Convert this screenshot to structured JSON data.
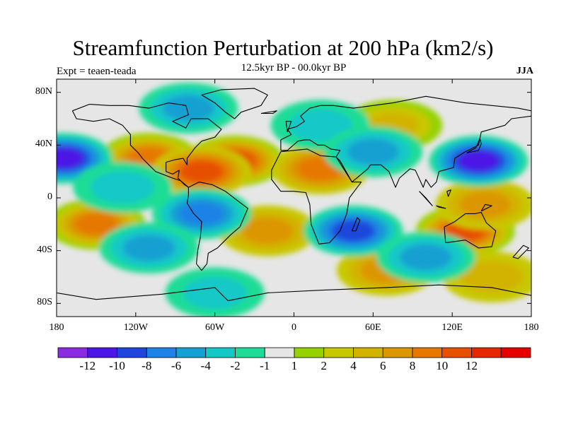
{
  "header": {
    "title": "Streamfunction Perturbation at 200 hPa (km2/s)",
    "subtitle": "12.5kyr BP - 00.0kyr BP",
    "left_label": "Expt = teaen-teada",
    "right_label": "JJA"
  },
  "map": {
    "projection": "cylindrical-equidistant",
    "lon_range": [
      -180,
      180
    ],
    "lat_range": [
      -90,
      90
    ],
    "lat_ticks": [
      {
        "value": 80,
        "label": "80N"
      },
      {
        "value": 40,
        "label": "40N"
      },
      {
        "value": 0,
        "label": "0"
      },
      {
        "value": -40,
        "label": "40S"
      },
      {
        "value": -80,
        "label": "80S"
      }
    ],
    "lon_ticks": [
      {
        "value": -180,
        "label": "180"
      },
      {
        "value": -120,
        "label": "120W"
      },
      {
        "value": -60,
        "label": "60W"
      },
      {
        "value": 0,
        "label": "0"
      },
      {
        "value": 60,
        "label": "60E"
      },
      {
        "value": 120,
        "label": "120E"
      },
      {
        "value": 180,
        "label": "180"
      }
    ],
    "colorbar": {
      "colors": [
        "#8a2be2",
        "#4b16e6",
        "#1e46dc",
        "#1e82e6",
        "#14a0d2",
        "#14c8c8",
        "#1edc96",
        "#e6e6e6",
        "#96d200",
        "#c8c800",
        "#d2b400",
        "#dc9600",
        "#e67800",
        "#e65000",
        "#e62800",
        "#e60000"
      ],
      "labels": [
        "-12",
        "-10",
        "-8",
        "-6",
        "-4",
        "-2",
        "-1",
        "1",
        "2",
        "4",
        "6",
        "8",
        "10",
        "12"
      ]
    },
    "features": [
      {
        "name": "north-atlantic-high",
        "lon": -45,
        "lat": 28,
        "value": 11
      },
      {
        "name": "west-atlantic-high",
        "lon": -110,
        "lat": 30,
        "value": 9
      },
      {
        "name": "caribbean-high",
        "lon": -70,
        "lat": 20,
        "value": 10
      },
      {
        "name": "north-africa-high",
        "lon": 20,
        "lat": 22,
        "value": 8
      },
      {
        "name": "south-atlantic-high",
        "lon": -20,
        "lat": -25,
        "value": 6
      },
      {
        "name": "south-pacific-high",
        "lon": -150,
        "lat": -20,
        "value": 9
      },
      {
        "name": "australia-high",
        "lon": 130,
        "lat": -25,
        "value": 11
      },
      {
        "name": "east-asia-high",
        "lon": 145,
        "lat": -5,
        "value": 6
      },
      {
        "name": "asia-high",
        "lon": 75,
        "lat": 55,
        "value": 5
      },
      {
        "name": "southern-ocean-high",
        "lon": 70,
        "lat": -55,
        "value": 6
      },
      {
        "name": "south-indian-high",
        "lon": 150,
        "lat": -60,
        "value": 4
      },
      {
        "name": "asia-low",
        "lon": 140,
        "lat": 28,
        "value": -12
      },
      {
        "name": "pacific-low",
        "lon": -175,
        "lat": 30,
        "value": -11
      },
      {
        "name": "south-africa-low",
        "lon": 45,
        "lat": -25,
        "value": -10
      },
      {
        "name": "south-america-low",
        "lon": -70,
        "lat": -12,
        "value": -8
      },
      {
        "name": "arctic-low",
        "lon": -80,
        "lat": 68,
        "value": -6
      },
      {
        "name": "europe-low",
        "lon": 20,
        "lat": 55,
        "value": -4
      },
      {
        "name": "arabia-low",
        "lon": 60,
        "lat": 35,
        "value": -5
      },
      {
        "name": "patagonia-low",
        "lon": -110,
        "lat": -38,
        "value": -6
      },
      {
        "name": "indian-ocean-low",
        "lon": 100,
        "lat": -45,
        "value": -5
      },
      {
        "name": "antarctic-low",
        "lon": -60,
        "lat": -72,
        "value": -4
      },
      {
        "name": "east-pacific-low",
        "lon": -130,
        "lat": 8,
        "value": -4
      }
    ]
  }
}
